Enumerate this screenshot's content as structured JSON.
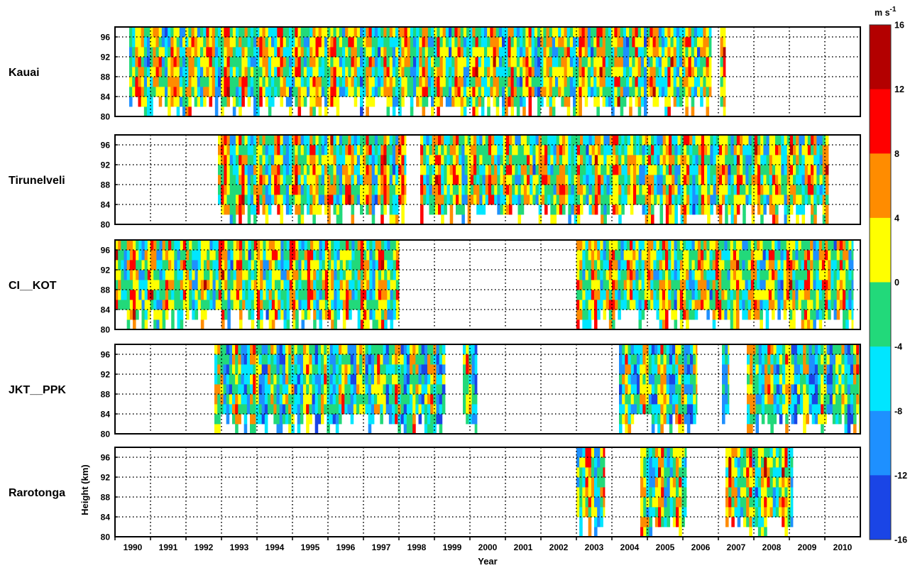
{
  "chart_data": {
    "type": "heatmap",
    "xlabel": "Year",
    "ylabel": "Height (km)",
    "x_tick_labels": [
      "1990",
      "1991",
      "1992",
      "1993",
      "1994",
      "1995",
      "1996",
      "1997",
      "1998",
      "1999",
      "2000",
      "2001",
      "2002",
      "2003",
      "2004",
      "2005",
      "2006",
      "2007",
      "2008",
      "2009",
      "2010"
    ],
    "y_tick_labels": [
      "80",
      "84",
      "88",
      "92",
      "96"
    ],
    "xlim": [
      1989.5,
      2010.5
    ],
    "ylim": [
      80,
      98
    ],
    "grid": true,
    "colorbar": {
      "unit_base": "m s",
      "unit_exp": "-1",
      "ticks": [
        "16",
        "12",
        "8",
        "4",
        "0",
        "-4",
        "-8",
        "-12",
        "-16"
      ],
      "levels": [
        -16,
        -12,
        -8,
        -4,
        0,
        4,
        8,
        12,
        16
      ],
      "colors": [
        "#1a45e6",
        "#1e90ff",
        "#00e6ff",
        "#22d97a",
        "#ffff00",
        "#ff8c00",
        "#ff0000",
        "#b30000"
      ]
    },
    "panels": [
      {
        "station": "Kauai",
        "coverage": [
          [
            1989.9,
            2006.3
          ],
          [
            2006.55,
            2006.7
          ]
        ]
      },
      {
        "station": "Tirunelveli",
        "coverage": [
          [
            1992.4,
            1997.7
          ],
          [
            1998.1,
            2009.6
          ]
        ]
      },
      {
        "station": "CI__KOT",
        "coverage": [
          [
            1989.5,
            1997.5
          ],
          [
            2002.5,
            2010.3
          ]
        ]
      },
      {
        "station": "JKT__PPK",
        "coverage": [
          [
            1992.3,
            1998.8
          ],
          [
            1999.3,
            1999.7
          ],
          [
            2003.7,
            2005.9
          ],
          [
            2006.6,
            2006.8
          ],
          [
            2007.3,
            2010.5
          ]
        ]
      },
      {
        "station": "Rarotonga",
        "coverage": [
          [
            2002.5,
            2003.3
          ],
          [
            2004.3,
            2005.6
          ],
          [
            2006.7,
            2008.6
          ]
        ]
      }
    ]
  }
}
